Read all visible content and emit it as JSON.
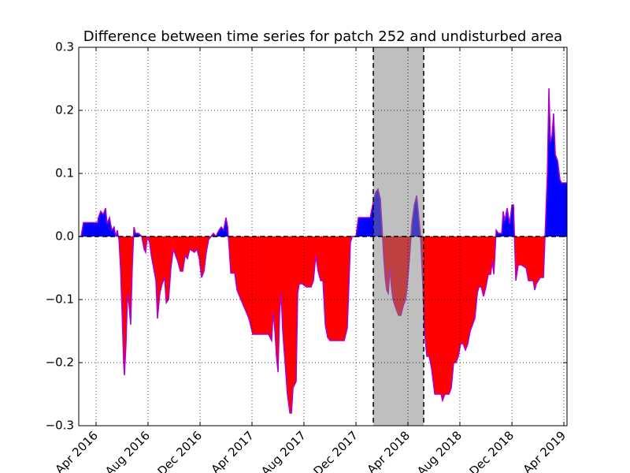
{
  "chart_data": {
    "type": "area",
    "title": "Difference between time series for patch 252 and undisturbed area",
    "x": [
      2016.154,
      2016.169,
      2016.26,
      2016.265,
      2016.28,
      2016.296,
      2016.311,
      2016.321,
      2016.336,
      2016.351,
      2016.366,
      2016.376,
      2016.386,
      2016.397,
      2016.407,
      2016.417,
      2016.427,
      2016.432,
      2016.442,
      2016.452,
      2016.462,
      2016.472,
      2016.482,
      2016.493,
      2016.503,
      2016.523,
      2016.543,
      2016.558,
      2016.568,
      2016.578,
      2016.594,
      2016.604,
      2016.619,
      2016.634,
      2016.644,
      2016.659,
      2016.674,
      2016.69,
      2016.7,
      2016.715,
      2016.73,
      2016.745,
      2016.76,
      2016.775,
      2016.791,
      2016.806,
      2016.821,
      2016.836,
      2016.851,
      2016.881,
      2016.897,
      2016.912,
      2016.927,
      2016.942,
      2016.957,
      2016.972,
      2016.987,
      2017.003,
      2017.018,
      2017.038,
      2017.053,
      2017.068,
      2017.083,
      2017.094,
      2017.104,
      2017.114,
      2017.139,
      2017.154,
      2017.179,
      2017.205,
      2017.23,
      2017.255,
      2017.356,
      2017.366,
      2017.376,
      2017.386,
      2017.397,
      2017.407,
      2017.417,
      2017.427,
      2017.437,
      2017.447,
      2017.462,
      2017.477,
      2017.493,
      2017.503,
      2017.513,
      2017.533,
      2017.543,
      2017.553,
      2017.573,
      2017.599,
      2017.629,
      2017.644,
      2017.659,
      2017.674,
      2017.69,
      2017.705,
      2017.72,
      2017.735,
      2017.75,
      2017.841,
      2017.861,
      2017.871,
      2017.881,
      2017.892,
      2017.917,
      2017.932,
      2018.008,
      2018.028,
      2018.043,
      2018.058,
      2018.073,
      2018.083,
      2018.094,
      2018.104,
      2018.114,
      2018.124,
      2018.134,
      2018.144,
      2018.154,
      2018.174,
      2018.19,
      2018.205,
      2018.22,
      2018.235,
      2018.245,
      2018.26,
      2018.275,
      2018.291,
      2018.306,
      2018.316,
      2018.331,
      2018.346,
      2018.356,
      2018.371,
      2018.386,
      2018.402,
      2018.412,
      2018.422,
      2018.462,
      2018.472,
      2018.487,
      2018.513,
      2018.528,
      2018.543,
      2018.558,
      2018.573,
      2018.588,
      2018.604,
      2018.619,
      2018.634,
      2018.649,
      2018.664,
      2018.679,
      2018.695,
      2018.705,
      2018.72,
      2018.735,
      2018.75,
      2018.765,
      2018.78,
      2018.791,
      2018.801,
      2018.816,
      2018.831,
      2018.851,
      2018.861,
      2018.871,
      2018.886,
      2018.902,
      2018.917,
      2018.927,
      2018.942,
      2018.957,
      2018.977,
      2019.008,
      2019.023,
      2019.053,
      2019.063,
      2019.073,
      2019.099,
      2019.119,
      2019.129,
      2019.144,
      2019.154,
      2019.164,
      2019.174,
      2019.184,
      2019.195,
      2019.21,
      2019.225,
      2019.235,
      2019.27
    ],
    "values": [
      0,
      0.022,
      0.022,
      0.03,
      0.04,
      0.035,
      0.045,
      0.02,
      0.03,
      0.01,
      0.015,
      0.0,
      0.01,
      -0.005,
      -0.05,
      -0.12,
      -0.2,
      -0.22,
      -0.17,
      -0.09,
      -0.11,
      -0.14,
      -0.05,
      0.015,
      0.005,
      0.005,
      0.0,
      -0.02,
      -0.025,
      0.0,
      -0.01,
      -0.03,
      -0.05,
      -0.07,
      -0.13,
      -0.09,
      -0.075,
      -0.065,
      -0.105,
      -0.1,
      -0.05,
      -0.02,
      -0.03,
      -0.04,
      -0.055,
      -0.055,
      -0.03,
      -0.035,
      -0.02,
      -0.025,
      -0.02,
      -0.035,
      -0.065,
      -0.055,
      -0.025,
      -0.005,
      0.0,
      0.005,
      0.0,
      0.01,
      0.015,
      0.01,
      0.03,
      0.015,
      -0.02,
      -0.058,
      -0.058,
      -0.085,
      -0.1,
      -0.115,
      -0.13,
      -0.155,
      -0.155,
      -0.16,
      -0.165,
      -0.12,
      -0.15,
      -0.19,
      -0.215,
      -0.12,
      -0.09,
      -0.15,
      -0.2,
      -0.25,
      -0.28,
      -0.28,
      -0.24,
      -0.23,
      -0.09,
      -0.075,
      -0.075,
      -0.08,
      -0.08,
      -0.07,
      -0.03,
      -0.055,
      -0.07,
      -0.07,
      -0.14,
      -0.16,
      -0.165,
      -0.165,
      -0.145,
      -0.08,
      -0.01,
      0.0,
      0.0,
      0.03,
      0.03,
      0.055,
      0.07,
      0.075,
      0.06,
      0.02,
      -0.03,
      -0.065,
      -0.085,
      -0.09,
      -0.05,
      -0.08,
      -0.1,
      -0.115,
      -0.125,
      -0.125,
      -0.11,
      -0.1,
      -0.08,
      -0.035,
      0.02,
      0.05,
      0.065,
      0.04,
      0.0,
      -0.08,
      -0.15,
      -0.19,
      -0.19,
      -0.21,
      -0.23,
      -0.25,
      -0.25,
      -0.26,
      -0.25,
      -0.25,
      -0.24,
      -0.2,
      -0.2,
      -0.19,
      -0.17,
      -0.17,
      -0.18,
      -0.17,
      -0.15,
      -0.14,
      -0.13,
      -0.09,
      -0.08,
      -0.08,
      -0.095,
      -0.08,
      -0.06,
      -0.06,
      -0.04,
      -0.06,
      0.01,
      0.005,
      0.005,
      0.04,
      0.025,
      0.045,
      0.02,
      0.05,
      0.05,
      -0.07,
      -0.045,
      -0.045,
      -0.05,
      -0.07,
      -0.07,
      -0.085,
      -0.075,
      -0.065,
      -0.065,
      0.0,
      0.1,
      0.235,
      0.15,
      0.16,
      0.195,
      0.13,
      0.12,
      0.09,
      0.085,
      0.085
    ],
    "line_color": "#b000d0",
    "above_color": "#0000ff",
    "below_color": "#ff0000",
    "shaded_span": [
      2018.028,
      2018.351
    ],
    "span_color": "#808080",
    "reference_line": 0,
    "xlim": [
      2016.139,
      2019.27
    ],
    "xticks": [
      {
        "value": 2016.25,
        "label": "Apr 2016"
      },
      {
        "value": 2016.583,
        "label": "Aug 2016"
      },
      {
        "value": 2016.917,
        "label": "Dec 2016"
      },
      {
        "value": 2017.25,
        "label": "Apr 2017"
      },
      {
        "value": 2017.583,
        "label": "Aug 2017"
      },
      {
        "value": 2017.917,
        "label": "Dec 2017"
      },
      {
        "value": 2018.25,
        "label": "Apr 2018"
      },
      {
        "value": 2018.583,
        "label": "Aug 2018"
      },
      {
        "value": 2018.917,
        "label": "Dec 2018"
      },
      {
        "value": 2019.25,
        "label": "Apr 2019"
      }
    ],
    "ylim": [
      -0.3,
      0.3
    ],
    "yticks": [
      {
        "value": -0.3,
        "label": "−0.3"
      },
      {
        "value": -0.2,
        "label": "−0.2"
      },
      {
        "value": -0.1,
        "label": "−0.1"
      },
      {
        "value": 0,
        "label": "0.0"
      },
      0.1,
      0.2,
      0.3
    ],
    "grid": true
  }
}
